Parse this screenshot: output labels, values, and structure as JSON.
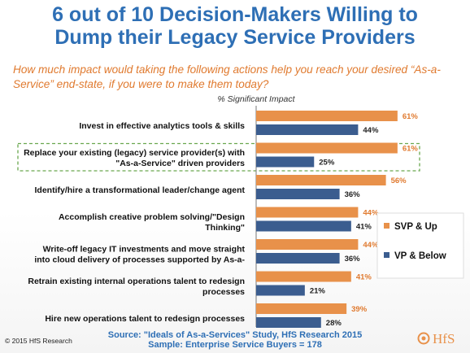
{
  "header": {
    "title_line1": "6 out of 10 Decision-Makers Willing to",
    "title_line2": "Dump their Legacy Service Providers",
    "subtitle_line1": "How much impact would taking the following actions help you reach your desired “As-a-",
    "subtitle_line2": "Service” end-state, if you were to make them today?"
  },
  "footer": {
    "source_line1": "Source: \"Ideals of As-a-Services\" Study, HfS Research 2015",
    "source_line2": "Sample: Enterprise Service Buyers = 178",
    "copyright": "© 2015 HfS Research",
    "logo_text": "HfS"
  },
  "chart_data": {
    "type": "bar",
    "orientation": "horizontal",
    "axis_title": "% Significant Impact",
    "categories": [
      [
        "Invest in effective analytics tools & skills"
      ],
      [
        "Replace your existing (legacy) service provider(s) with",
        "\"As-a-Service\" driven providers"
      ],
      [
        "Identify/hire a transformational leader/change agent"
      ],
      [
        "Accomplish creative problem solving/\"Design",
        "Thinking\""
      ],
      [
        "Write-off legacy IT investments and move straight",
        "into cloud delivery of processes supported by As-a-"
      ],
      [
        "Retrain existing internal operations talent to redesign",
        "processes"
      ],
      [
        "Hire new operations talent to redesign processes"
      ]
    ],
    "series": [
      {
        "name": "SVP & Up",
        "color": "#e8914a",
        "values": [
          61,
          61,
          56,
          44,
          44,
          41,
          39
        ]
      },
      {
        "name": "VP & Below",
        "color": "#3b5d8f",
        "values": [
          44,
          25,
          36,
          41,
          36,
          21,
          28
        ]
      }
    ],
    "value_suffix": "%",
    "xlim": [
      0,
      70
    ],
    "highlighted_category_index": 1,
    "legend_position": "right",
    "data_label_color": "#e07a2f"
  }
}
